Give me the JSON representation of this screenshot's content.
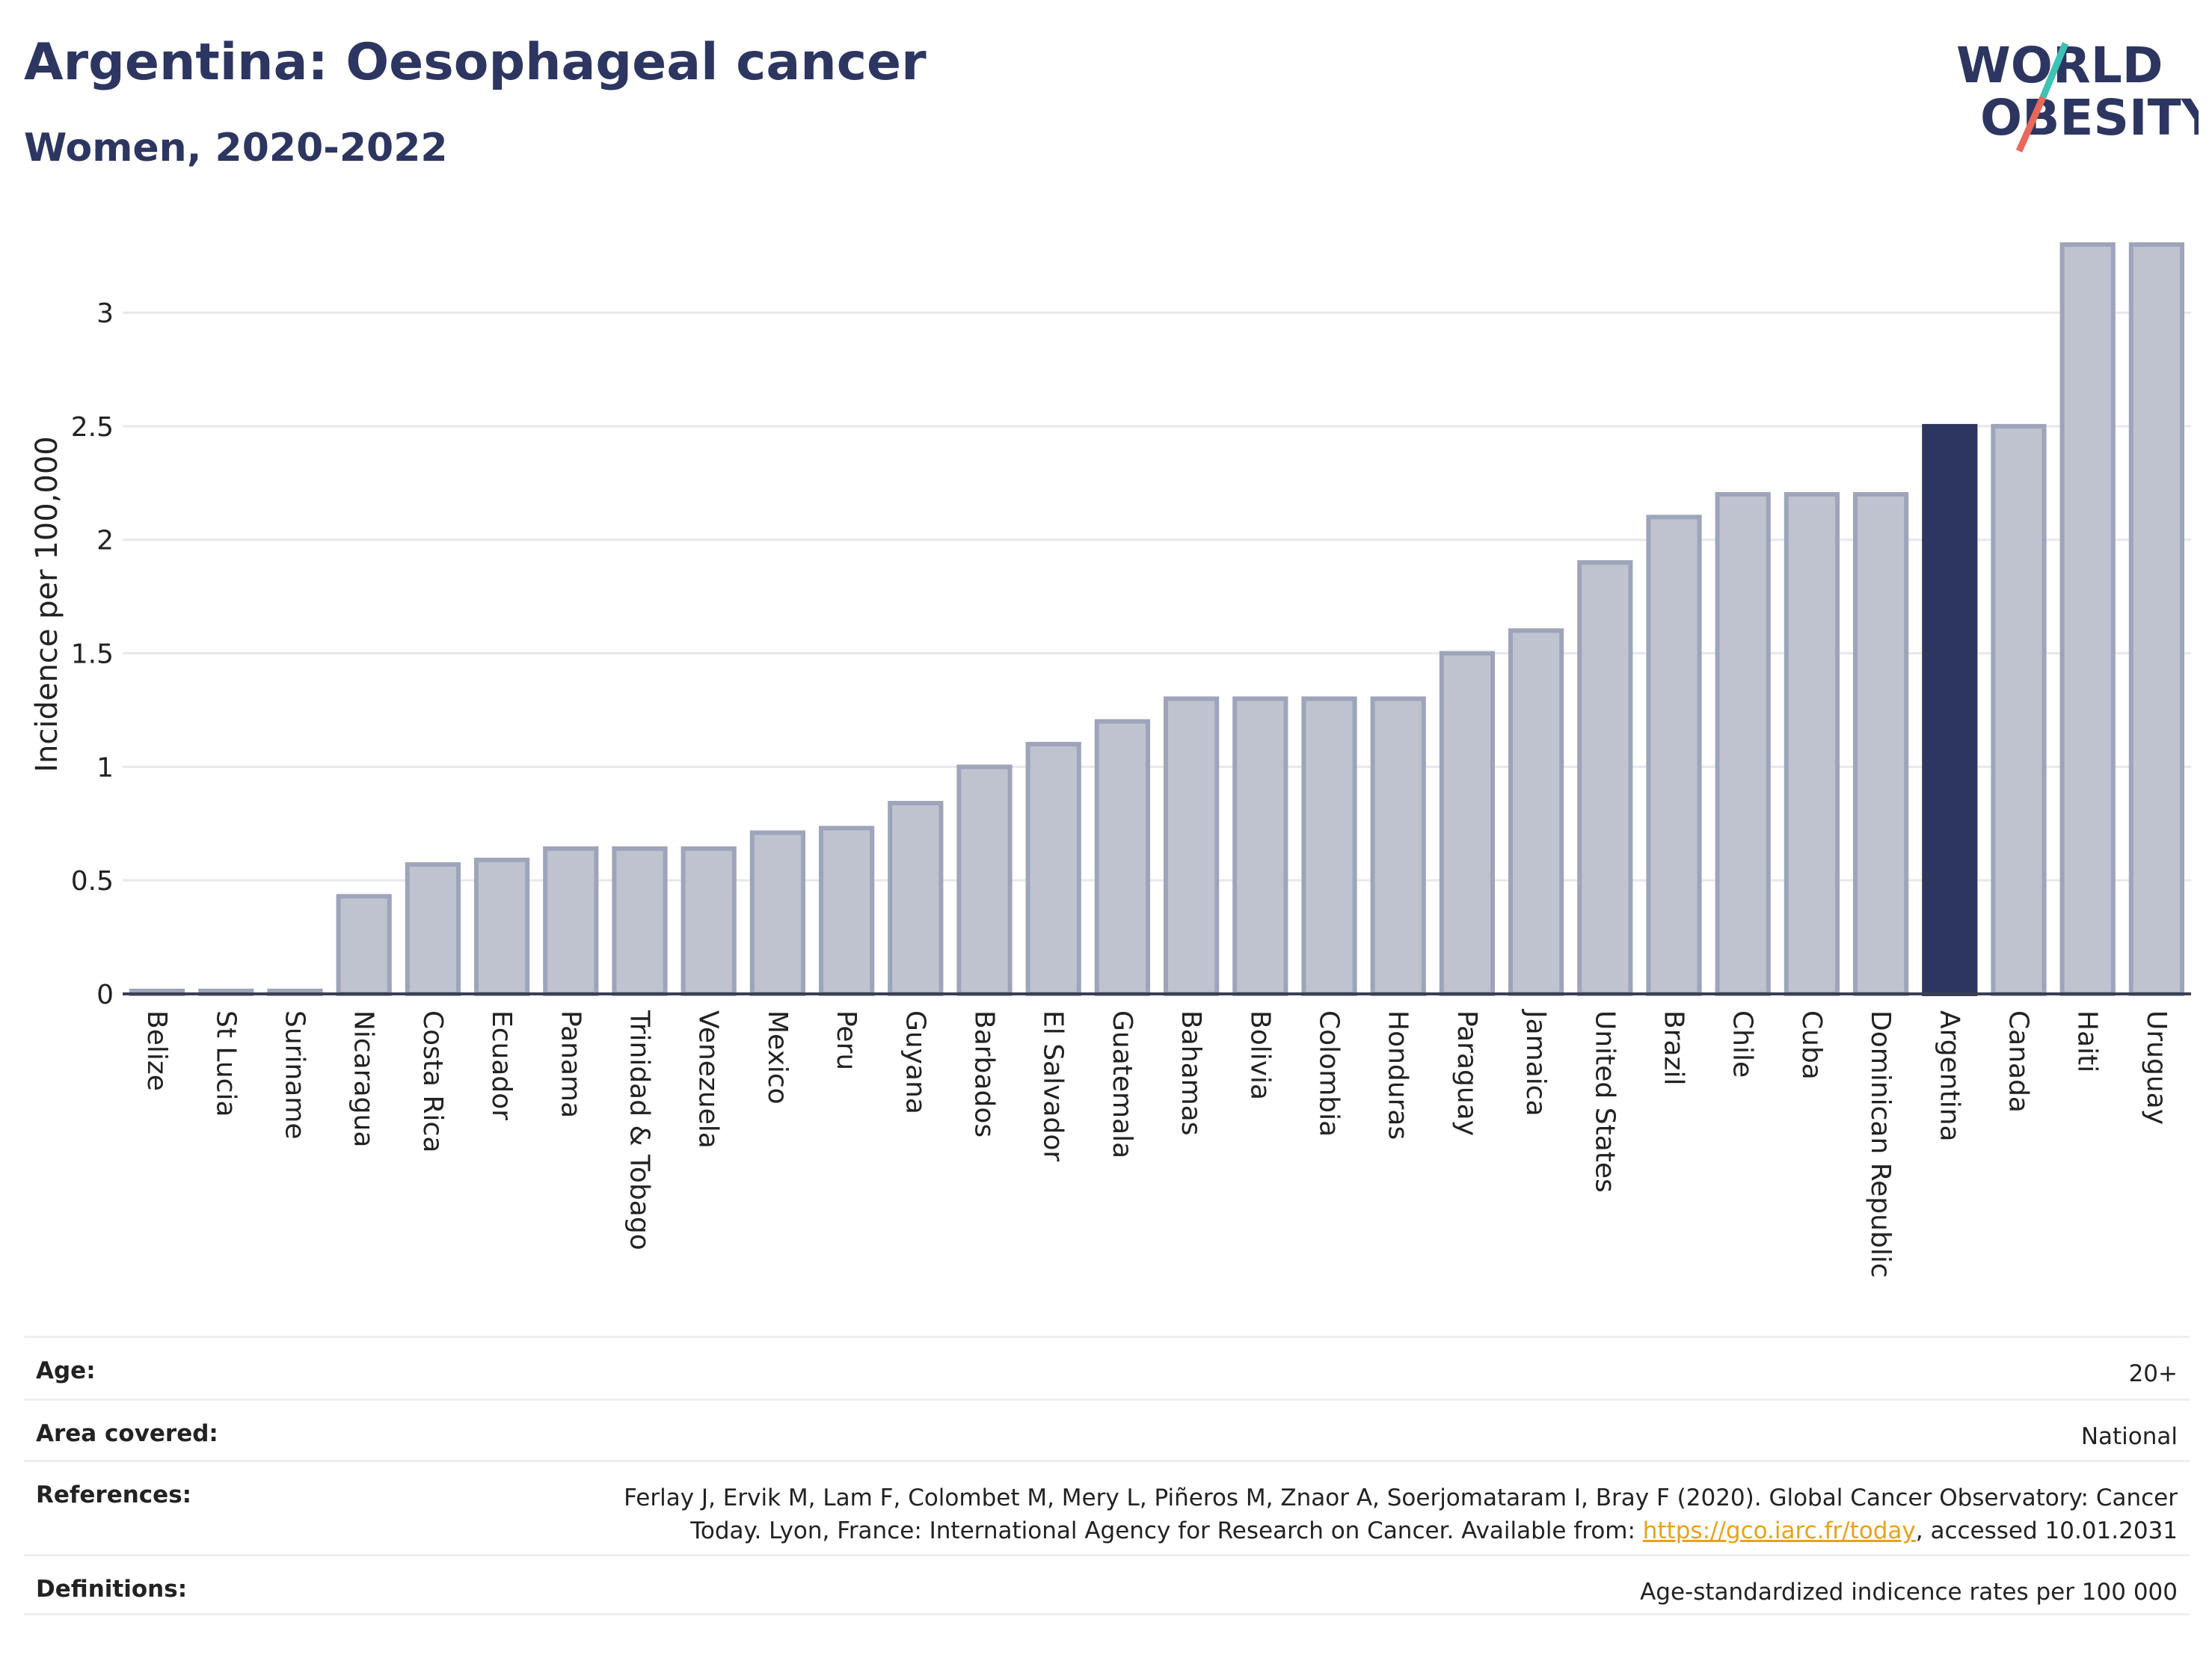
{
  "header": {
    "title": "Argentina: Oesophageal cancer",
    "subtitle": "Women, 2020-2022"
  },
  "logo": {
    "line1": "WORLD",
    "line2": "OBESITY",
    "accent_teal": "#3fc1b5",
    "accent_red": "#e8685a",
    "text_color": "#2d3660"
  },
  "chart_data": {
    "type": "bar",
    "ylabel": "Incidence per 100,000",
    "ylim": [
      0,
      3.3
    ],
    "yticks": [
      0,
      0.5,
      1,
      1.5,
      2,
      2.5,
      3
    ],
    "ytick_labels": [
      "0",
      "0.5",
      "1",
      "1.5",
      "2",
      "2.5",
      "3"
    ],
    "grid": true,
    "highlight": "Argentina",
    "colors": {
      "bar": "#bfc3d0",
      "bar_border": "#9ea4b9",
      "highlight": "#2d3660"
    },
    "categories": [
      "Belize",
      "St Lucia",
      "Suriname",
      "Nicaragua",
      "Costa Rica",
      "Ecuador",
      "Panama",
      "Trinidad & Tobago",
      "Venezuela",
      "Mexico",
      "Peru",
      "Guyana",
      "Barbados",
      "El Salvador",
      "Guatemala",
      "Bahamas",
      "Bolivia",
      "Colombia",
      "Honduras",
      "Paraguay",
      "Jamaica",
      "United States",
      "Brazil",
      "Chile",
      "Cuba",
      "Dominican Republic",
      "Argentina",
      "Canada",
      "Haiti",
      "Uruguay"
    ],
    "values": [
      0.0,
      0.0,
      0.0,
      0.43,
      0.57,
      0.59,
      0.64,
      0.64,
      0.64,
      0.71,
      0.73,
      0.84,
      1.0,
      1.1,
      1.2,
      1.3,
      1.3,
      1.3,
      1.3,
      1.5,
      1.6,
      1.9,
      2.1,
      2.2,
      2.2,
      2.2,
      2.5,
      2.5,
      3.3,
      3.3
    ]
  },
  "meta": {
    "age_label": "Age:",
    "age_value": "20+",
    "area_label": "Area covered:",
    "area_value": "National",
    "references_label": "References:",
    "references_line1": "Ferlay J, Ervik M, Lam F, Colombet M, Mery L, Piñeros M, Znaor A, Soerjomataram I, Bray F (2020). Global Cancer Observatory: Cancer",
    "references_line2_pre": "Today. Lyon, France: International Agency for Research on Cancer. Available from: ",
    "references_link": "https://gco.iarc.fr/today",
    "references_line2_post": ", accessed 10.01.2031",
    "definitions_label": "Definitions:",
    "definitions_value": "Age-standardized indicence rates per 100 000"
  }
}
